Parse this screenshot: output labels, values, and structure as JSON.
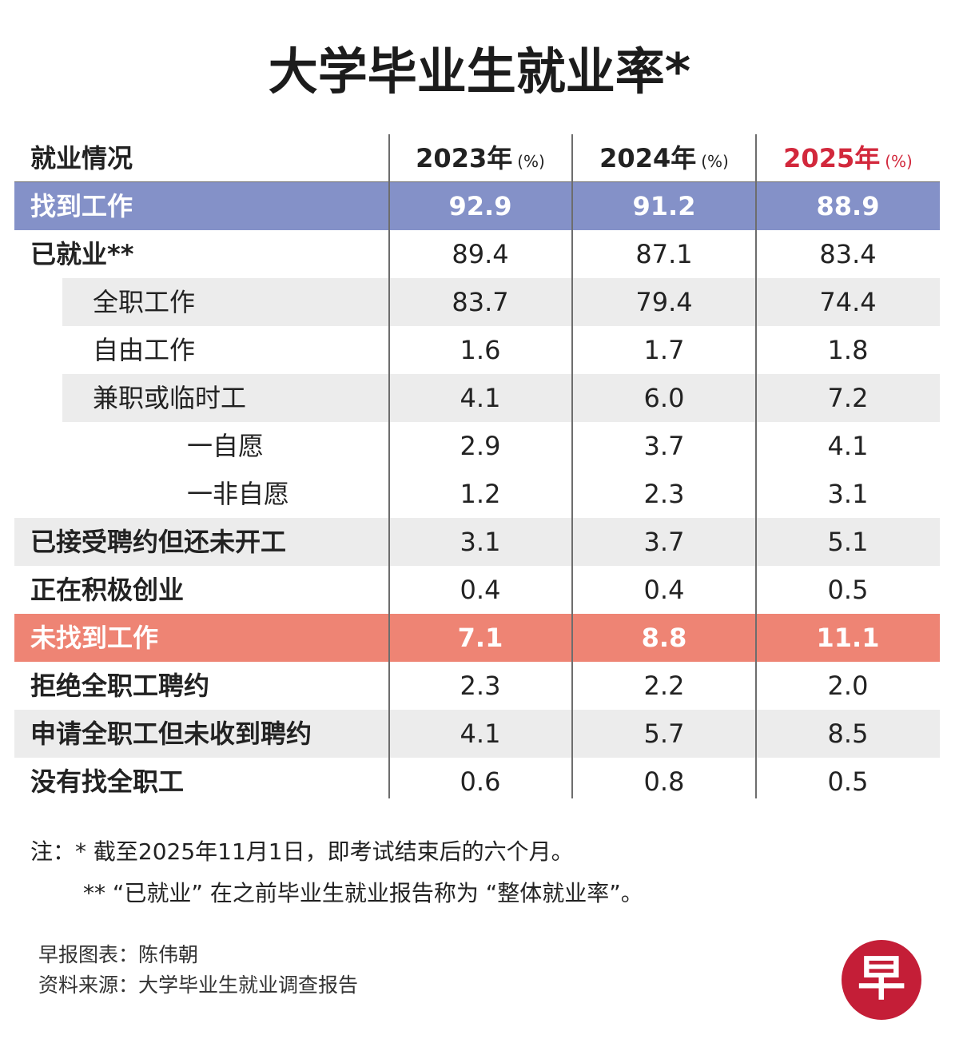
{
  "title": "大学毕业生就业率*",
  "colors": {
    "found_band": "#8491c8",
    "not_found_band": "#ee8474",
    "shade_band": "#ececec",
    "year_highlight": "#d2283c",
    "logo": "#c41e37"
  },
  "chart_data": {
    "type": "table",
    "title": "大学毕业生就业率*",
    "header": {
      "label": "就业情况",
      "columns": [
        {
          "year": "2023年",
          "unit": "(%)"
        },
        {
          "year": "2024年",
          "unit": "(%)"
        },
        {
          "year": "2025年",
          "unit": "(%)"
        }
      ]
    },
    "rows": [
      {
        "label": "找到工作",
        "values": [
          "92.9",
          "91.2",
          "88.9"
        ]
      },
      {
        "label": "已就业**",
        "values": [
          "89.4",
          "87.1",
          "83.4"
        ]
      },
      {
        "label": "全职工作",
        "values": [
          "83.7",
          "79.4",
          "74.4"
        ]
      },
      {
        "label": "自由工作",
        "values": [
          "1.6",
          "1.7",
          "1.8"
        ]
      },
      {
        "label": "兼职或临时工",
        "values": [
          "4.1",
          "6.0",
          "7.2"
        ]
      },
      {
        "label": "一自愿",
        "values": [
          "2.9",
          "3.7",
          "4.1"
        ]
      },
      {
        "label": "一非自愿",
        "values": [
          "1.2",
          "2.3",
          "3.1"
        ]
      },
      {
        "label": "已接受聘约但还未开工",
        "values": [
          "3.1",
          "3.7",
          "5.1"
        ]
      },
      {
        "label": "正在积极创业",
        "values": [
          "0.4",
          "0.4",
          "0.5"
        ]
      },
      {
        "label": "未找到工作",
        "values": [
          "7.1",
          "8.8",
          "11.1"
        ]
      },
      {
        "label": "拒绝全职工聘约",
        "values": [
          "2.3",
          "2.2",
          "2.0"
        ]
      },
      {
        "label": "申请全职工但未收到聘约",
        "values": [
          "4.1",
          "5.7",
          "8.5"
        ]
      },
      {
        "label": "没有找全职工",
        "values": [
          "0.6",
          "0.8",
          "0.5"
        ]
      }
    ]
  },
  "notes": {
    "line1": "注：* 截至2025年11月1日，即考试结束后的六个月。",
    "line2": "** “已就业” 在之前毕业生就业报告称为 “整体就业率”。"
  },
  "source": {
    "graphic": "早报图表：陈伟朝",
    "data": "资料来源：大学毕业生就业调查报告"
  },
  "logo": {
    "char": "早"
  }
}
